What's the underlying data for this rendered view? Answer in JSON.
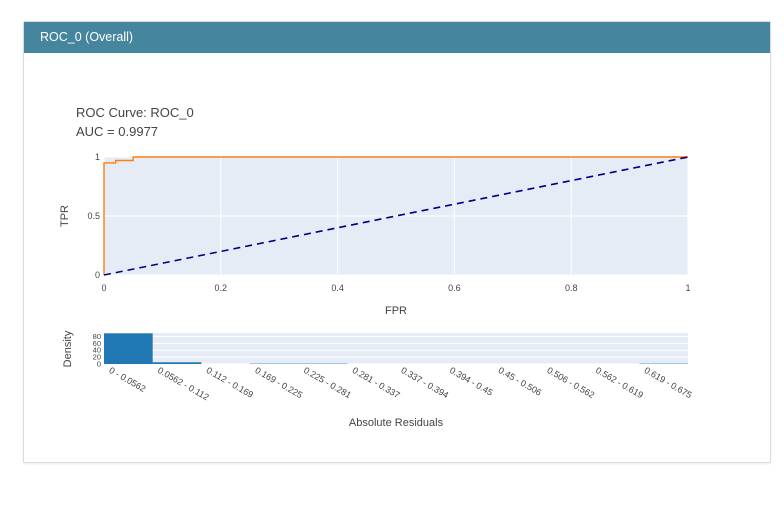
{
  "card": {
    "title": "ROC_0 (Overall)"
  },
  "roc_title_line1": "ROC Curve: ROC_0",
  "roc_title_line2": "AUC = 0.9977",
  "colors": {
    "header": "#45869e",
    "plot_bg": "#e5ecf6",
    "roc_line": "#ff7f0e",
    "diagonal": "#000080",
    "bars": "#1f77b4"
  },
  "chart_data": [
    {
      "type": "line",
      "xlabel": "FPR",
      "ylabel": "TPR",
      "xlim": [
        0,
        1
      ],
      "ylim": [
        0,
        1
      ],
      "x_ticks": [
        "0",
        "0.2",
        "0.4",
        "0.6",
        "0.8",
        "1"
      ],
      "y_ticks": [
        "0",
        "0.5",
        "1"
      ],
      "series": [
        {
          "x": [
            0,
            0,
            0.02,
            0.02,
            0.05,
            0.05,
            1
          ],
          "y": [
            0,
            0.95,
            0.95,
            0.97,
            0.97,
            1,
            1
          ]
        },
        {
          "x": [
            0,
            1
          ],
          "y": [
            0,
            1
          ],
          "style": "dashed"
        }
      ]
    },
    {
      "type": "bar",
      "xlabel": "Absolute Residuals",
      "ylabel": "Density",
      "ylim": [
        0,
        90
      ],
      "y_ticks": [
        "0",
        "20",
        "40",
        "60",
        "80"
      ],
      "categories": [
        "0 - 0.0562",
        "0.0562 - 0.112",
        "0.112 - 0.169",
        "0.169 - 0.225",
        "0.225 - 0.281",
        "0.281 - 0.337",
        "0.337 - 0.394",
        "0.394 - 0.45",
        "0.45 - 0.506",
        "0.506 - 0.562",
        "0.562 - 0.619",
        "0.619 - 0.675"
      ],
      "values": [
        89,
        5,
        0,
        1,
        1,
        0,
        0,
        0,
        0,
        0,
        0,
        1
      ]
    }
  ]
}
